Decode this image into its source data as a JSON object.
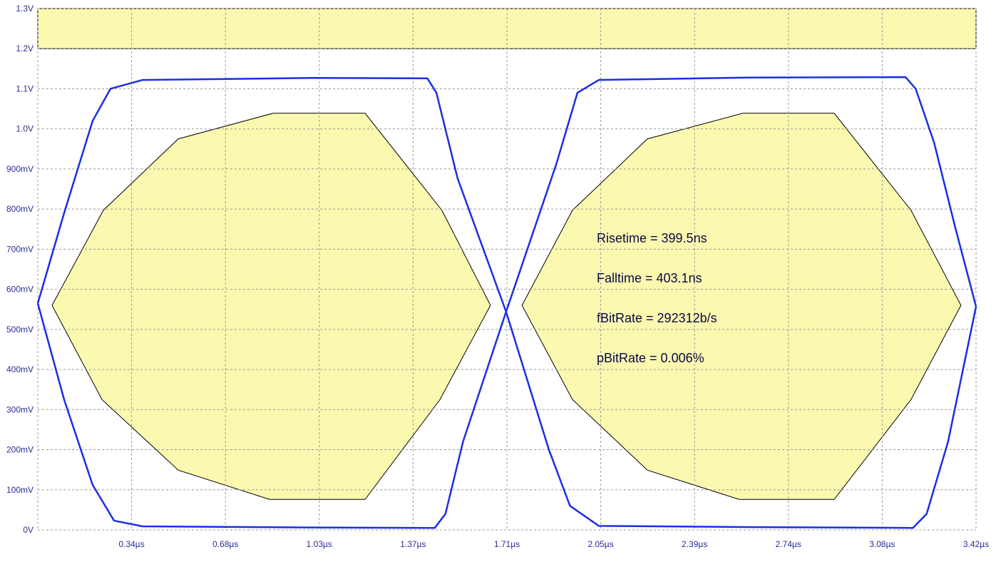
{
  "chart_data": {
    "type": "line",
    "annotations": [
      "Risetime = 399.5ns",
      "Falltime = 403.1ns",
      "fBitRate = 292312b/s",
      "pBitRate = 0.006%"
    ],
    "xlim": [
      0,
      3.42
    ],
    "ylim": [
      0,
      1.3
    ],
    "grid": true,
    "xticks": [
      {
        "value": 0.342,
        "label": "0.34µs"
      },
      {
        "value": 0.684,
        "label": "0.68µs"
      },
      {
        "value": 1.026,
        "label": "1.03µs"
      },
      {
        "value": 1.368,
        "label": "1.37µs"
      },
      {
        "value": 1.71,
        "label": "1.71µs"
      },
      {
        "value": 2.052,
        "label": "2.05µs"
      },
      {
        "value": 2.394,
        "label": "2.39µs"
      },
      {
        "value": 2.736,
        "label": "2.74µs"
      },
      {
        "value": 3.078,
        "label": "3.08µs"
      },
      {
        "value": 3.42,
        "label": "3.42µs"
      }
    ],
    "yticks": [
      {
        "value": 0,
        "label": "0V"
      },
      {
        "value": 0.1,
        "label": "100mV"
      },
      {
        "value": 0.2,
        "label": "200mV"
      },
      {
        "value": 0.3,
        "label": "300mV"
      },
      {
        "value": 0.4,
        "label": "400mV"
      },
      {
        "value": 0.5,
        "label": "500mV"
      },
      {
        "value": 0.6,
        "label": "600mV"
      },
      {
        "value": 0.7,
        "label": "700mV"
      },
      {
        "value": 0.8,
        "label": "800mV"
      },
      {
        "value": 0.9,
        "label": "900mV"
      },
      {
        "value": 1.0,
        "label": "1.0V"
      },
      {
        "value": 1.1,
        "label": "1.1V"
      },
      {
        "value": 1.2,
        "label": "1.2V"
      },
      {
        "value": 1.3,
        "label": "1.3V"
      }
    ],
    "masks": [
      {
        "color": "#fbf8b0",
        "x": [
          0,
          3.42,
          3.42,
          0
        ],
        "y": [
          1.2,
          1.2,
          1.3,
          1.3
        ]
      },
      {
        "color": "#fbf8b0",
        "x": [
          0.052,
          0.239,
          0.512,
          0.858,
          1.193,
          1.473,
          1.65,
          1.466,
          1.193,
          0.845,
          0.512,
          0.234
        ],
        "y": [
          0.56,
          0.797,
          0.975,
          1.039,
          1.039,
          0.797,
          0.56,
          0.325,
          0.076,
          0.076,
          0.149,
          0.325
        ]
      },
      {
        "color": "#fbf8b0",
        "x": [
          1.765,
          1.949,
          2.222,
          2.57,
          2.903,
          3.183,
          3.365,
          3.183,
          2.903,
          2.557,
          2.222,
          1.949
        ],
        "y": [
          0.56,
          0.797,
          0.975,
          1.039,
          1.039,
          0.797,
          0.56,
          0.325,
          0.076,
          0.076,
          0.149,
          0.325
        ]
      }
    ],
    "series": [
      {
        "color": "#1a2ee6",
        "x": [
          0,
          0.096,
          0.2,
          0.265,
          0.382,
          1.0,
          1.42,
          1.453,
          1.53,
          1.707,
          1.863,
          1.94,
          2.045,
          2.6,
          3.19,
          3.24,
          3.318,
          3.42
        ],
        "values": [
          0.565,
          0.79,
          1.02,
          1.1,
          1.122,
          1.127,
          1.126,
          1.09,
          0.877,
          0.544,
          0.2,
          0.06,
          0.01,
          0.007,
          0.005,
          0.04,
          0.22,
          0.557
        ]
      },
      {
        "color": "#1a2ee6",
        "x": [
          0,
          0.096,
          0.2,
          0.278,
          0.382,
          1.0,
          1.447,
          1.486,
          1.55,
          1.707,
          1.89,
          1.967,
          2.045,
          2.6,
          3.163,
          3.2,
          3.267,
          3.345,
          3.42
        ],
        "values": [
          0.565,
          0.325,
          0.112,
          0.023,
          0.009,
          0.006,
          0.005,
          0.04,
          0.22,
          0.544,
          0.912,
          1.09,
          1.122,
          1.128,
          1.129,
          1.1,
          0.966,
          0.752,
          0.557
        ]
      }
    ]
  }
}
